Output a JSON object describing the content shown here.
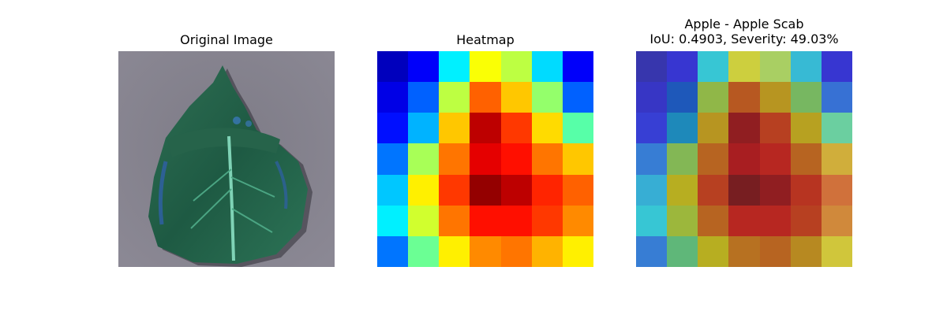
{
  "panels": [
    {
      "title": "Original Image"
    },
    {
      "title": "Heatmap"
    },
    {
      "title_line1": "Apple - Apple Scab",
      "title_line2": "IoU: 0.4903, Severity: 49.03%"
    }
  ],
  "chart_data": [
    {
      "type": "image",
      "title": "Original Image",
      "subject": "leaf"
    },
    {
      "type": "heatmap",
      "title": "Heatmap",
      "colormap": "jet",
      "rows": 7,
      "cols": 7,
      "values": [
        [
          0.06,
          0.12,
          0.36,
          0.62,
          0.56,
          0.34,
          0.12
        ],
        [
          0.1,
          0.22,
          0.56,
          0.78,
          0.68,
          0.52,
          0.22
        ],
        [
          0.14,
          0.3,
          0.68,
          0.94,
          0.82,
          0.66,
          0.46
        ],
        [
          0.24,
          0.54,
          0.76,
          0.9,
          0.86,
          0.76,
          0.68
        ],
        [
          0.32,
          0.64,
          0.82,
          0.98,
          0.94,
          0.84,
          0.78
        ],
        [
          0.36,
          0.58,
          0.76,
          0.86,
          0.86,
          0.82,
          0.74
        ],
        [
          0.24,
          0.48,
          0.64,
          0.74,
          0.76,
          0.7,
          0.64
        ]
      ]
    },
    {
      "type": "heatmap",
      "title": "Apple - Apple Scab",
      "subtitle": "IoU: 0.4903, Severity: 49.03%",
      "overlay": true
    }
  ]
}
